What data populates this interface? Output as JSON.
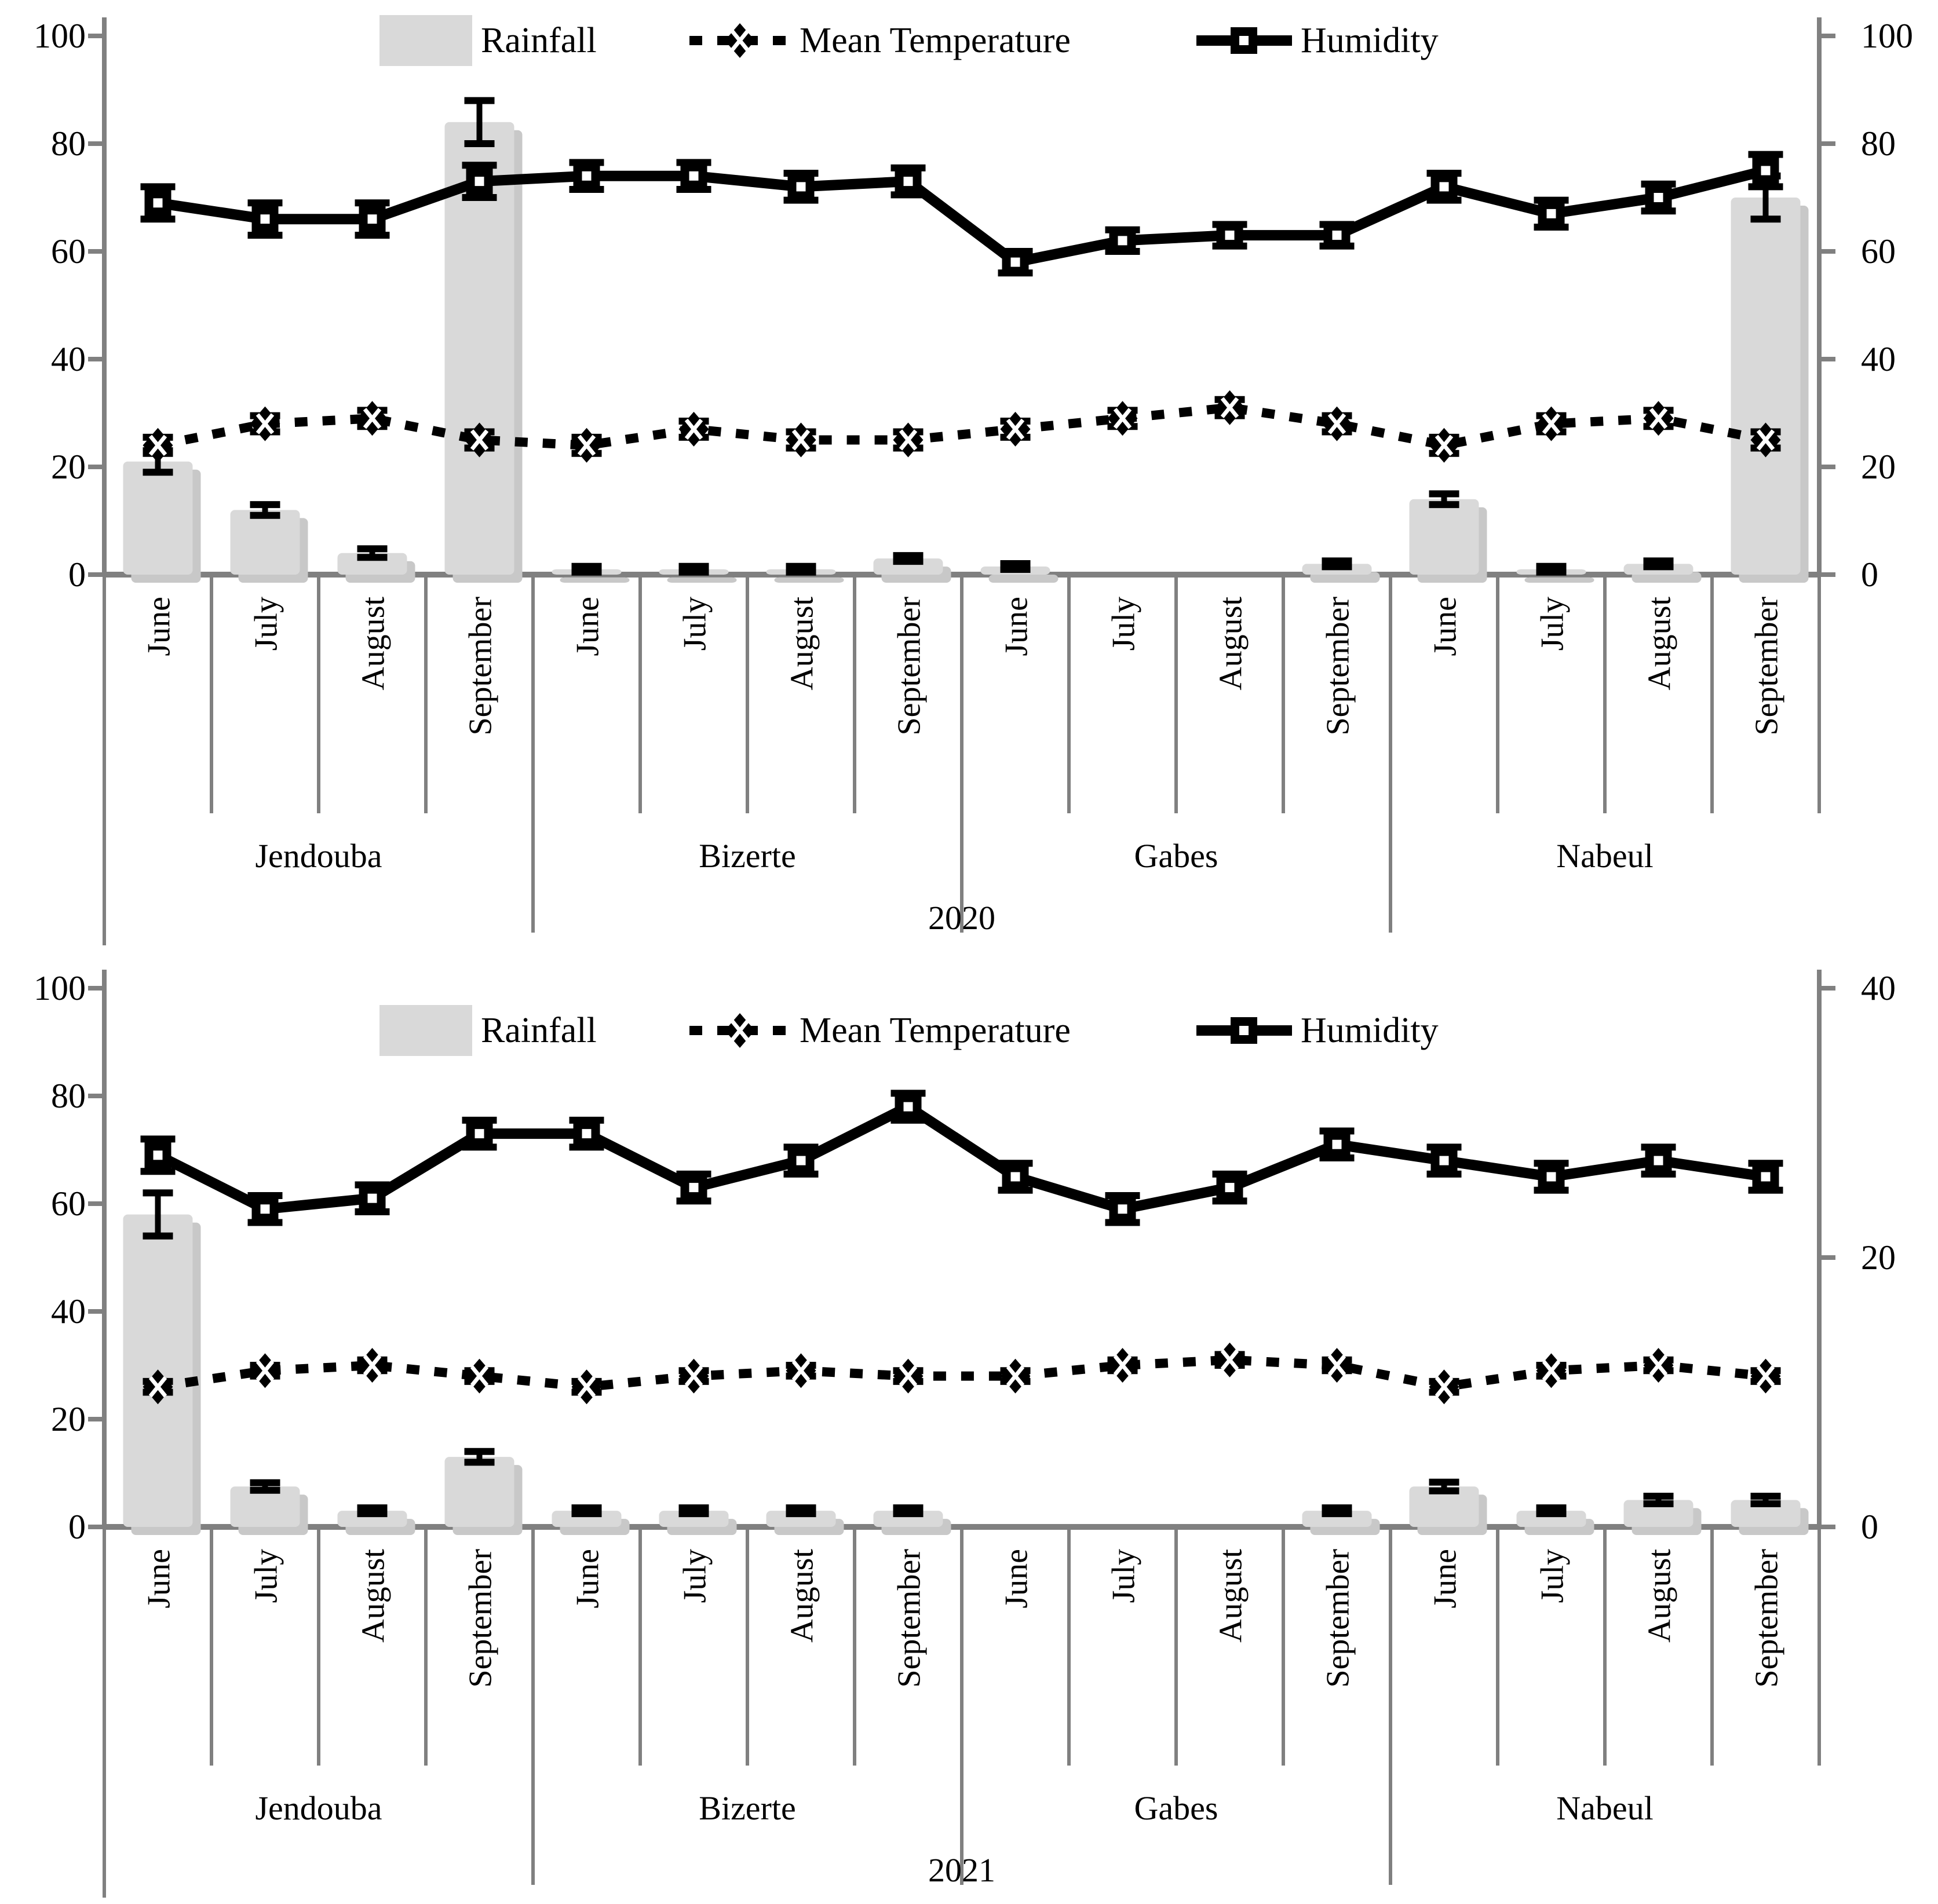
{
  "legend": {
    "rainfall_label": "Rainfall",
    "mean_temperature_label": "Mean Temperature",
    "humidity_label": "Humidity"
  },
  "months": [
    "June",
    "July",
    "August",
    "September"
  ],
  "regions": [
    "Jendouba",
    "Bizerte",
    "Gabes",
    "Nabeul"
  ],
  "colors": {
    "bar": "#d9d9d9",
    "bar_shadow": "#c8c8c8",
    "series_line": "#000000",
    "axis_gray": "#808080",
    "text": "#000000"
  },
  "chart_data": [
    {
      "type": "bar",
      "subtype": "bar+line combo, grouped by region and month",
      "year": "2020",
      "categories": [
        "June",
        "July",
        "August",
        "September",
        "June",
        "July",
        "August",
        "September",
        "June",
        "July",
        "August",
        "September",
        "June",
        "July",
        "August",
        "September"
      ],
      "region_of_column": [
        "Jendouba",
        "Jendouba",
        "Jendouba",
        "Jendouba",
        "Bizerte",
        "Bizerte",
        "Bizerte",
        "Bizerte",
        "Gabes",
        "Gabes",
        "Gabes",
        "Gabes",
        "Nabeul",
        "Nabeul",
        "Nabeul",
        "Nabeul"
      ],
      "left_axis_ticks": [
        0,
        20,
        40,
        60,
        80,
        100
      ],
      "right_axis_ticks": [
        0,
        20,
        40,
        60,
        80,
        100
      ],
      "ylim_left": [
        0,
        100
      ],
      "ylim_right": [
        0,
        100
      ],
      "grid": "off",
      "legend_position": "top-center-inside",
      "series": [
        {
          "name": "Rainfall",
          "type": "bar",
          "values": [
            21,
            12,
            4,
            84,
            1,
            1,
            1,
            3,
            1.5,
            0,
            0,
            2,
            14,
            1,
            2,
            70
          ],
          "errors": [
            2,
            1,
            0.8,
            4,
            0.4,
            0.4,
            0.4,
            0.5,
            0.4,
            0,
            0,
            0.5,
            1,
            0.3,
            0.5,
            4
          ]
        },
        {
          "name": "Mean Temperature",
          "type": "line",
          "style": "dotted",
          "marker": "diamond-x",
          "values": [
            24,
            28,
            29,
            25,
            24,
            27,
            25,
            25,
            27,
            29,
            31,
            28,
            24,
            28,
            29,
            25
          ],
          "errors": [
            1.5,
            1.5,
            1.5,
            1.5,
            1.5,
            1.5,
            1.5,
            1.5,
            1.5,
            1.5,
            1.5,
            1.5,
            1.5,
            1.5,
            1.5,
            1.5
          ]
        },
        {
          "name": "Humidity",
          "type": "line",
          "style": "solid",
          "marker": "square",
          "values": [
            69,
            66,
            66,
            73,
            74,
            74,
            72,
            73,
            58,
            62,
            63,
            63,
            72,
            67,
            70,
            75
          ],
          "errors": [
            3,
            3,
            3,
            3,
            2.5,
            2.5,
            2.5,
            2.5,
            2,
            2,
            2,
            2,
            2.5,
            2.5,
            2.5,
            3
          ]
        }
      ]
    },
    {
      "type": "bar",
      "subtype": "bar+line combo, grouped by region and month",
      "year": "2021",
      "categories": [
        "June",
        "July",
        "August",
        "September",
        "June",
        "July",
        "August",
        "September",
        "June",
        "July",
        "August",
        "September",
        "June",
        "July",
        "August",
        "September"
      ],
      "region_of_column": [
        "Jendouba",
        "Jendouba",
        "Jendouba",
        "Jendouba",
        "Bizerte",
        "Bizerte",
        "Bizerte",
        "Bizerte",
        "Gabes",
        "Gabes",
        "Gabes",
        "Gabes",
        "Nabeul",
        "Nabeul",
        "Nabeul",
        "Nabeul"
      ],
      "left_axis_ticks": [
        0,
        20,
        40,
        60,
        80,
        100
      ],
      "right_axis_ticks": [
        0,
        20,
        40
      ],
      "ylim_left": [
        0,
        100
      ],
      "ylim_right": [
        0,
        40
      ],
      "grid": "off",
      "legend_position": "top-center-inside",
      "series": [
        {
          "name": "Rainfall",
          "type": "bar",
          "values": [
            58,
            7.5,
            3,
            13,
            3,
            3,
            3,
            3,
            0,
            0,
            0,
            3,
            7.5,
            3,
            5,
            5
          ],
          "errors": [
            4,
            0.7,
            0.5,
            1,
            0.5,
            0.5,
            0.5,
            0.5,
            0,
            0,
            0,
            0.5,
            0.8,
            0.5,
            0.7,
            0.7
          ]
        },
        {
          "name": "Mean Temperature",
          "type": "line",
          "style": "dotted",
          "marker": "diamond-x",
          "values": [
            26,
            29,
            30,
            28,
            26,
            28,
            29,
            28,
            28,
            30,
            31,
            30,
            26,
            29,
            30,
            28
          ],
          "errors": [
            1,
            1,
            1,
            1,
            1,
            1,
            1,
            1,
            1,
            1,
            1,
            1,
            1,
            1,
            1,
            1
          ]
        },
        {
          "name": "Humidity",
          "type": "line",
          "style": "solid",
          "marker": "square",
          "values": [
            69,
            59,
            61,
            73,
            73,
            63,
            68,
            78,
            65,
            59,
            63,
            71,
            68,
            65,
            68,
            65
          ],
          "errors": [
            3,
            2.5,
            2.5,
            2.5,
            2.5,
            2.5,
            2.5,
            2.5,
            2.5,
            2.5,
            2.5,
            2.5,
            2.5,
            2.5,
            2.5,
            2.5
          ]
        }
      ]
    }
  ]
}
